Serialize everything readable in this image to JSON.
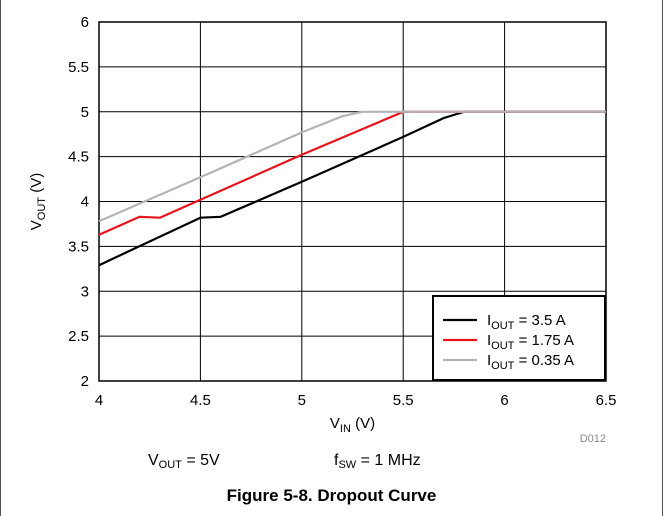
{
  "chart_data": {
    "type": "line",
    "title": "",
    "xlabel": {
      "main": "V",
      "sub": "IN",
      "unit": " (V)"
    },
    "ylabel": {
      "main": "V",
      "sub": "OUT",
      "unit": " (V)"
    },
    "xlim": [
      4,
      6.5
    ],
    "ylim": [
      2,
      6
    ],
    "x_ticks": [
      "4",
      "4.5",
      "5",
      "5.5",
      "6",
      "6.5"
    ],
    "y_ticks": [
      "2",
      "2.5",
      "3",
      "3.5",
      "4",
      "4.5",
      "5",
      "5.5",
      "6"
    ],
    "grid": true,
    "legend_position": "bottom-right",
    "series": [
      {
        "name": "I_OUT = 3.5 A",
        "label_main": "I",
        "label_sub": "OUT",
        "label_rest": " = 3.5 A",
        "color": "#000000",
        "points": [
          [
            4.0,
            3.29
          ],
          [
            4.5,
            3.82
          ],
          [
            4.6,
            3.83
          ],
          [
            5.0,
            4.22
          ],
          [
            5.5,
            4.72
          ],
          [
            5.7,
            4.93
          ],
          [
            5.8,
            5.0
          ],
          [
            6.5,
            5.0
          ]
        ]
      },
      {
        "name": "I_OUT = 1.75 A",
        "label_main": "I",
        "label_sub": "OUT",
        "label_rest": " = 1.75 A",
        "color": "#e8141c",
        "points": [
          [
            4.0,
            3.63
          ],
          [
            4.2,
            3.83
          ],
          [
            4.3,
            3.82
          ],
          [
            4.5,
            4.02
          ],
          [
            5.0,
            4.52
          ],
          [
            5.5,
            5.0
          ],
          [
            6.5,
            5.0
          ]
        ]
      },
      {
        "name": "I_OUT = 0.35 A",
        "label_main": "I",
        "label_sub": "OUT",
        "label_rest": " = 0.35 A",
        "color": "#b4b4b4",
        "points": [
          [
            4.0,
            3.78
          ],
          [
            4.5,
            4.27
          ],
          [
            5.0,
            4.77
          ],
          [
            5.2,
            4.95
          ],
          [
            5.3,
            5.0
          ],
          [
            6.5,
            5.0
          ]
        ]
      }
    ],
    "annotation": "D012"
  },
  "conditions": {
    "vout": {
      "main": "V",
      "sub": "OUT",
      "rest": " = 5V"
    },
    "fsw": {
      "main": "f",
      "sub": "SW",
      "rest": " = 1 MHz"
    }
  },
  "caption": "Figure 5-8. Dropout Curve"
}
